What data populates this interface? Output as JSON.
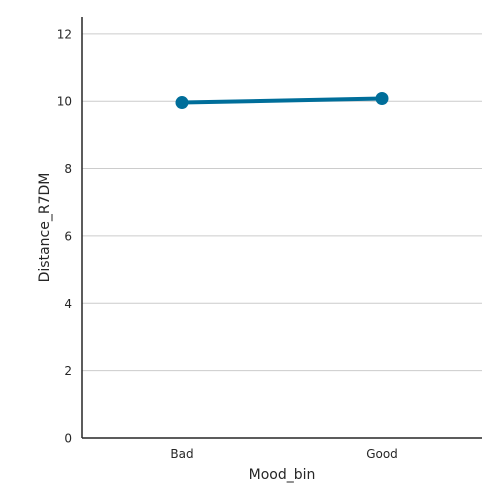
{
  "chart_data": {
    "type": "line",
    "style": "point-plot",
    "categories": [
      "Bad",
      "Good"
    ],
    "series": [
      {
        "values": [
          9.96,
          10.08
        ],
        "color": "#006e9a"
      }
    ],
    "xlabel": "Mood_bin",
    "ylabel": "Distance_R7DM",
    "ylim": [
      0,
      12.5
    ],
    "yticks": [
      0,
      2,
      4,
      6,
      8,
      10,
      12
    ],
    "grid": "horizontal",
    "grid_color": "#cccccc",
    "axis_color": "#262626"
  }
}
